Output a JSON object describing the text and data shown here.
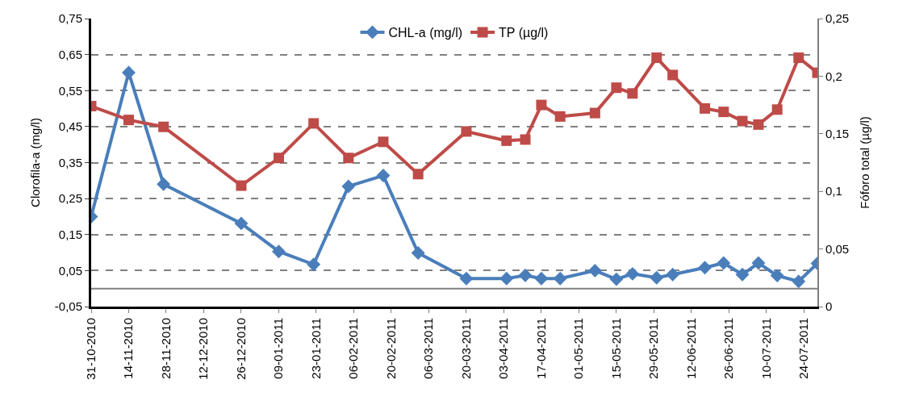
{
  "chart_data": {
    "type": "line",
    "ylabel": "Clorofila-a (mg/l)",
    "y2label": "Fóforo total (µg/l)",
    "x": [
      "2010-10-31",
      "2010-11-14",
      "2010-11-27",
      "2010-12-26",
      "2011-01-09",
      "2011-01-22",
      "2011-02-04",
      "2011-02-17",
      "2011-03-02",
      "2011-03-20",
      "2011-04-04",
      "2011-04-11",
      "2011-04-17",
      "2011-04-24",
      "2011-05-07",
      "2011-05-15",
      "2011-05-21",
      "2011-05-30",
      "2011-06-05",
      "2011-06-17",
      "2011-06-24",
      "2011-07-01",
      "2011-07-07",
      "2011-07-14",
      "2011-07-22",
      "2011-07-29"
    ],
    "series": [
      {
        "name": "CHL-a (mg/l)",
        "color": "#4a7ebb",
        "marker": "diamond",
        "values": [
          0.2,
          0.6,
          0.29,
          0.181,
          0.103,
          0.067,
          0.284,
          0.314,
          0.099,
          0.028,
          0.028,
          0.037,
          0.028,
          0.028,
          0.05,
          0.026,
          0.041,
          0.03,
          0.039,
          0.058,
          0.071,
          0.039,
          0.071,
          0.036,
          0.02,
          0.07
        ]
      },
      {
        "name": "TP (µg/l)",
        "color": "#be4b48",
        "marker": "square",
        "axis": "y2",
        "values": [
          0.174,
          0.162,
          0.156,
          0.105,
          0.129,
          0.159,
          0.129,
          0.143,
          0.115,
          0.152,
          0.144,
          0.145,
          0.175,
          0.165,
          0.168,
          0.19,
          0.185,
          0.216,
          0.201,
          0.172,
          0.169,
          0.161,
          0.158,
          0.171,
          0.216,
          0.203
        ]
      }
    ],
    "xlim": [
      "2010-10-31",
      "2011-07-29"
    ],
    "xticks": [
      {
        "value": "2010-10-31",
        "label": "31-10-2010"
      },
      {
        "value": "2010-11-14",
        "label": "14-11-2010"
      },
      {
        "value": "2010-11-28",
        "label": "28-11-2010"
      },
      {
        "value": "2010-12-12",
        "label": "12-12-2010"
      },
      {
        "value": "2010-12-26",
        "label": "26-12-2010"
      },
      {
        "value": "2011-01-09",
        "label": "09-01-2011"
      },
      {
        "value": "2011-01-23",
        "label": "23-01-2011"
      },
      {
        "value": "2011-02-06",
        "label": "06-02-2011"
      },
      {
        "value": "2011-02-20",
        "label": "20-02-2011"
      },
      {
        "value": "2011-03-06",
        "label": "06-03-2011"
      },
      {
        "value": "2011-03-20",
        "label": "20-03-2011"
      },
      {
        "value": "2011-04-03",
        "label": "03-04-2011"
      },
      {
        "value": "2011-04-17",
        "label": "17-04-2011"
      },
      {
        "value": "2011-05-01",
        "label": "01-05-2011"
      },
      {
        "value": "2011-05-15",
        "label": "15-05-2011"
      },
      {
        "value": "2011-05-29",
        "label": "29-05-2011"
      },
      {
        "value": "2011-06-12",
        "label": "12-06-2011"
      },
      {
        "value": "2011-06-26",
        "label": "26-06-2011"
      },
      {
        "value": "2011-07-10",
        "label": "10-07-2011"
      },
      {
        "value": "2011-07-24",
        "label": "24-07-2011"
      }
    ],
    "ylim": [
      -0.05,
      0.75
    ],
    "yticks": [
      {
        "value": -0.05,
        "label": "-0,05"
      },
      {
        "value": 0.05,
        "label": "0,05"
      },
      {
        "value": 0.15,
        "label": "0,15"
      },
      {
        "value": 0.25,
        "label": "0,25"
      },
      {
        "value": 0.35,
        "label": "0,35"
      },
      {
        "value": 0.45,
        "label": "0,45"
      },
      {
        "value": 0.55,
        "label": "0,55"
      },
      {
        "value": 0.65,
        "label": "0,65"
      },
      {
        "value": 0.75,
        "label": "0,75"
      }
    ],
    "y2lim": [
      0,
      0.25
    ],
    "y2ticks": [
      0,
      {
        "value": 0.05,
        "label": "0,05"
      },
      {
        "value": 0.1,
        "label": "0,1"
      },
      {
        "value": 0.15,
        "label": "0,15"
      },
      {
        "value": 0.2,
        "label": "0,2"
      },
      {
        "value": 0.25,
        "label": "0,25"
      }
    ],
    "ref_lines": [
      {
        "axis": "y",
        "value": 0,
        "color": "#808080",
        "line_style": "solid"
      }
    ],
    "grid": "y",
    "legend": "top",
    "line_style": "solid"
  }
}
